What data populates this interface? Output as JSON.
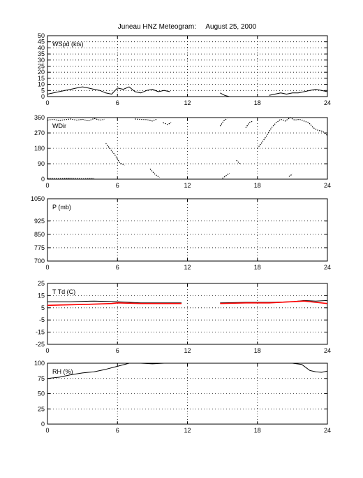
{
  "title": "Juneau HNZ Meteogram:     August 25, 2000",
  "chart_data": [
    {
      "type": "line",
      "label": "WSpd (kts)",
      "xlim": [
        0,
        24
      ],
      "ylim": [
        0,
        50
      ],
      "xticks": [
        "0",
        "6",
        "12",
        "18",
        "24"
      ],
      "yticks": [
        "0",
        "5",
        "10",
        "15",
        "20",
        "25",
        "30",
        "35",
        "40",
        "45",
        "50"
      ],
      "grid": true,
      "series": [
        {
          "color": "#000000",
          "segments": [
            [
              [
                0,
                2
              ],
              [
                0.5,
                3
              ],
              [
                1,
                4
              ],
              [
                1.5,
                5
              ],
              [
                2,
                6
              ],
              [
                2.5,
                7
              ],
              [
                3,
                8
              ],
              [
                3.5,
                7
              ],
              [
                4,
                6
              ],
              [
                4.5,
                5
              ],
              [
                5,
                3
              ],
              [
                5.5,
                2
              ],
              [
                6,
                7
              ],
              [
                6.5,
                6
              ],
              [
                7,
                8
              ],
              [
                7.5,
                4
              ],
              [
                8,
                3
              ],
              [
                8.5,
                5
              ],
              [
                9,
                6
              ],
              [
                9.5,
                4
              ],
              [
                10,
                5
              ],
              [
                10.5,
                4
              ]
            ],
            [
              [
                14.8,
                3
              ],
              [
                15.2,
                1
              ],
              [
                15.6,
                0
              ]
            ],
            [
              [
                19,
                1
              ],
              [
                19.5,
                2
              ],
              [
                20,
                3
              ],
              [
                20.5,
                2
              ],
              [
                21,
                3
              ],
              [
                21.5,
                3
              ],
              [
                22,
                4
              ],
              [
                22.5,
                5
              ],
              [
                23,
                6
              ],
              [
                23.5,
                5
              ],
              [
                24,
                4
              ]
            ]
          ]
        }
      ]
    },
    {
      "type": "scatter",
      "label": "WDir",
      "xlim": [
        0,
        24
      ],
      "ylim": [
        0,
        360
      ],
      "xticks": [
        "0",
        "6",
        "12",
        "18",
        "24"
      ],
      "yticks": [
        "0",
        "90",
        "180",
        "270",
        "360"
      ],
      "grid": true,
      "series": [
        {
          "color": "#000000",
          "segments": [
            [
              [
                0,
                345
              ],
              [
                0.5,
                350
              ],
              [
                1,
                342
              ],
              [
                1.5,
                348
              ],
              [
                2,
                352
              ],
              [
                2.5,
                345
              ],
              [
                3,
                350
              ],
              [
                3.5,
                340
              ],
              [
                4,
                355
              ],
              [
                4.5,
                345
              ],
              [
                4.9,
                350
              ]
            ],
            [
              [
                5,
                210
              ],
              [
                5.4,
                175
              ],
              [
                5.8,
                140
              ],
              [
                6.2,
                95
              ],
              [
                6.6,
                80
              ]
            ],
            [
              [
                0,
                5
              ],
              [
                1,
                3
              ],
              [
                2,
                5
              ],
              [
                3,
                2
              ],
              [
                4,
                4
              ]
            ],
            [
              [
                7.5,
                352
              ],
              [
                7.8,
                350
              ],
              [
                8.5,
                348
              ],
              [
                9,
                340
              ],
              [
                9.4,
                352
              ]
            ],
            [
              [
                8.8,
                60
              ],
              [
                9.2,
                30
              ],
              [
                9.6,
                10
              ]
            ],
            [
              [
                9.9,
                330
              ],
              [
                10.3,
                320
              ],
              [
                10.6,
                330
              ]
            ],
            [
              [
                14.8,
                310
              ],
              [
                15.1,
                340
              ],
              [
                15.4,
                355
              ]
            ],
            [
              [
                15,
                5
              ],
              [
                15.3,
                20
              ],
              [
                15.6,
                35
              ]
            ],
            [
              [
                16.2,
                110
              ],
              [
                16.5,
                90
              ]
            ],
            [
              [
                17,
                300
              ],
              [
                17.3,
                330
              ],
              [
                17.6,
                340
              ]
            ],
            [
              [
                18,
                180
              ],
              [
                18.4,
                215
              ],
              [
                18.8,
                255
              ],
              [
                19.2,
                300
              ],
              [
                19.6,
                330
              ],
              [
                20,
                350
              ],
              [
                20.4,
                340
              ],
              [
                20.8,
                360
              ],
              [
                21.2,
                345
              ],
              [
                21.6,
                350
              ],
              [
                22,
                340
              ],
              [
                22.4,
                330
              ],
              [
                22.8,
                300
              ],
              [
                23.2,
                285
              ],
              [
                23.6,
                280
              ],
              [
                24,
                255
              ]
            ],
            [
              [
                20.7,
                15
              ],
              [
                21,
                30
              ]
            ]
          ]
        }
      ]
    },
    {
      "type": "line",
      "label": "P (mb)",
      "xlim": [
        0,
        24
      ],
      "ylim": [
        700,
        1050
      ],
      "xticks": [
        "0",
        "6",
        "12",
        "18",
        "24"
      ],
      "yticks": [
        "700",
        "775",
        "850",
        "925",
        "1050"
      ],
      "ytick_values": [
        700,
        775,
        850,
        925,
        1050
      ],
      "grid": true,
      "series": []
    },
    {
      "type": "line",
      "label": "T Td (C)",
      "xlim": [
        0,
        24
      ],
      "ylim": [
        -25,
        25
      ],
      "xticks": [
        "0",
        "6",
        "12",
        "18",
        "24"
      ],
      "yticks": [
        "-25",
        "-15",
        "-5",
        "5",
        "15",
        "25"
      ],
      "grid": true,
      "series": [
        {
          "color": "#000000",
          "segments": [
            [
              [
                0,
                10
              ],
              [
                2,
                10
              ],
              [
                4,
                10.5
              ],
              [
                6,
                10
              ],
              [
                8,
                9
              ],
              [
                10,
                9
              ],
              [
                11.5,
                9
              ]
            ],
            [
              [
                14.8,
                9
              ],
              [
                17,
                9.5
              ],
              [
                19,
                9.5
              ],
              [
                21,
                10
              ],
              [
                22,
                11
              ],
              [
                23,
                10.5
              ],
              [
                24,
                11
              ]
            ]
          ]
        },
        {
          "color": "#ff0000",
          "segments": [
            [
              [
                0,
                7
              ],
              [
                2,
                7.5
              ],
              [
                4,
                8
              ],
              [
                5.5,
                8.5
              ],
              [
                6,
                9
              ],
              [
                8,
                8.5
              ],
              [
                10,
                8.5
              ],
              [
                11.5,
                8.5
              ]
            ],
            [
              [
                14.8,
                8.5
              ],
              [
                17,
                9
              ],
              [
                19,
                9
              ],
              [
                21,
                10
              ],
              [
                22,
                10.5
              ],
              [
                23,
                9.5
              ],
              [
                24,
                8.5
              ]
            ]
          ]
        }
      ]
    },
    {
      "type": "line",
      "label": "RH (%)",
      "xlim": [
        0,
        24
      ],
      "ylim": [
        0,
        100
      ],
      "xticks": [
        "0",
        "6",
        "12",
        "18",
        "24"
      ],
      "yticks": [
        "0",
        "25",
        "50",
        "75",
        "100"
      ],
      "grid": true,
      "series": [
        {
          "color": "#000000",
          "segments": [
            [
              [
                0,
                75
              ],
              [
                1,
                77
              ],
              [
                2,
                81
              ],
              [
                3,
                84
              ],
              [
                4,
                86
              ],
              [
                5,
                90
              ],
              [
                6,
                95
              ],
              [
                7,
                100
              ],
              [
                8,
                100
              ],
              [
                9,
                99
              ],
              [
                10,
                100
              ],
              [
                11,
                100
              ],
              [
                11.5,
                100
              ]
            ],
            [
              [
                19,
                100
              ],
              [
                20,
                100
              ],
              [
                21,
                100
              ],
              [
                21.8,
                98
              ],
              [
                22.5,
                88
              ],
              [
                23,
                86
              ],
              [
                23.5,
                85
              ],
              [
                24,
                87
              ]
            ]
          ]
        }
      ]
    }
  ]
}
